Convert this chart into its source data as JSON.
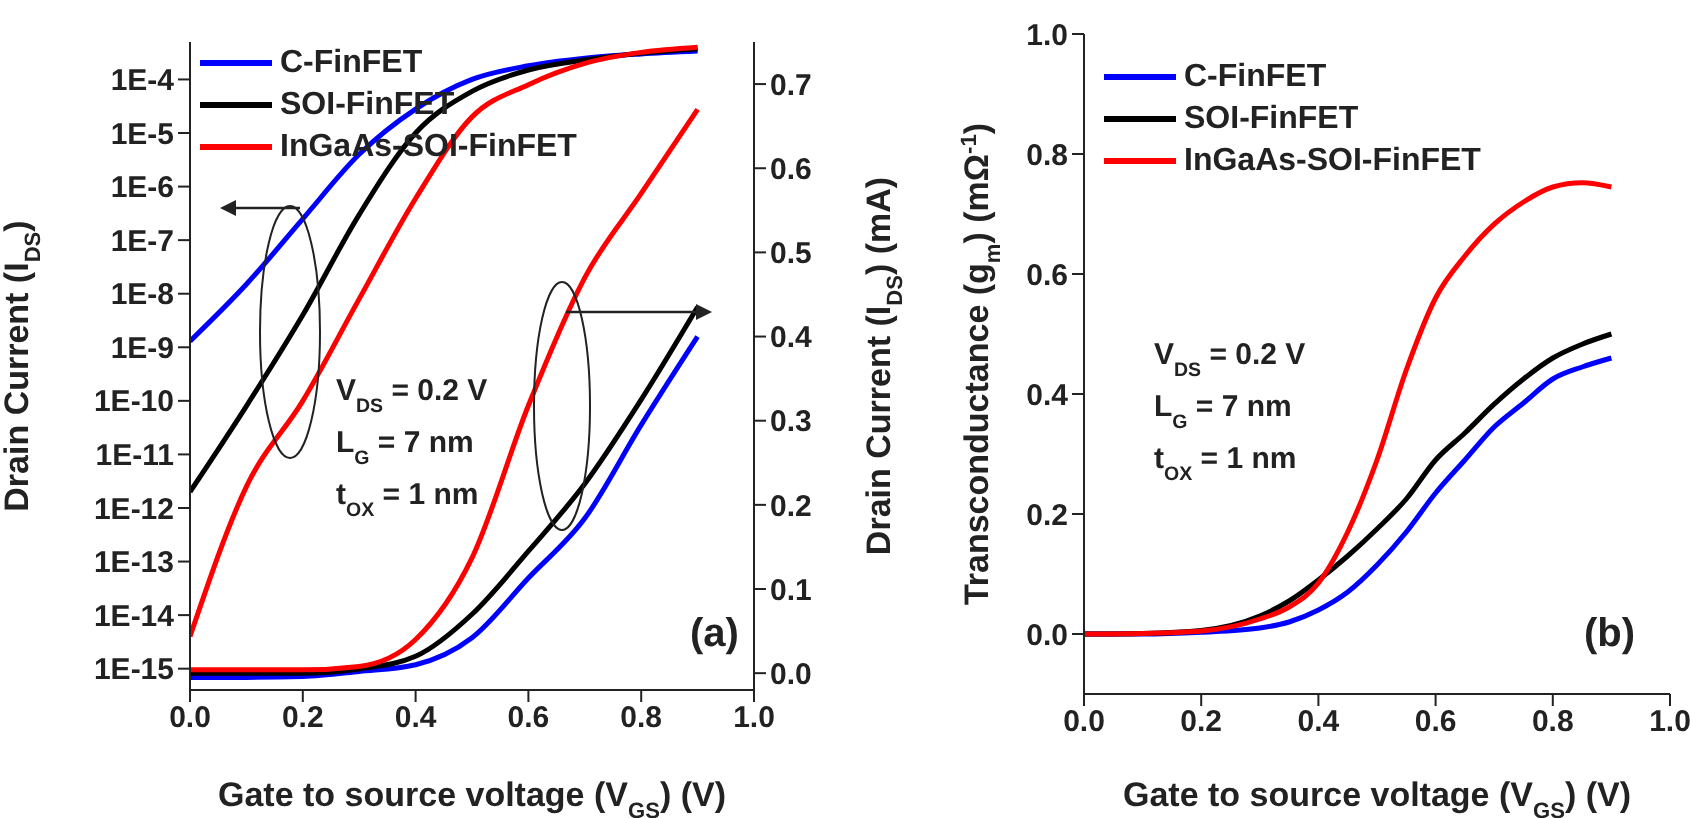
{
  "chart_data": [
    {
      "type": "line",
      "log": "y",
      "legend": "top left",
      "x": [
        0,
        0.1,
        0.2,
        0.3,
        0.4,
        0.5,
        0.6,
        0.7,
        0.8,
        0.9
      ],
      "series": [
        {
          "name": "C-FinFET",
          "color": "#0000ff",
          "values": [
            1.3e-09,
            1.5e-08,
            2.5e-07,
            4e-06,
            2.8e-05,
            0.0001,
            0.00018,
            0.00025,
            0.0003,
            0.00034
          ]
        },
        {
          "name": "SOI-FinFET",
          "color": "#000000",
          "values": [
            2e-12,
            8e-11,
            4e-09,
            3e-07,
            1e-05,
            6e-05,
            0.00015,
            0.00023,
            0.00031,
            0.00037
          ]
        },
        {
          "name": "InGaAs-SOI-FinFET",
          "color": "#ff0000",
          "values": [
            4e-15,
            2.5e-12,
            1e-10,
            8e-09,
            6e-07,
            2e-05,
            8e-05,
            0.0002,
            0.00032,
            0.0004
          ]
        },
        {
          "color": "#0000ff",
          "axis": "y2",
          "values": [
            -0.005,
            -0.005,
            -0.004,
            0.002,
            0.01,
            0.042,
            0.113,
            0.184,
            0.295,
            0.4
          ]
        },
        {
          "color": "#000000",
          "axis": "y2",
          "values": [
            0,
            0,
            0,
            0.005,
            0.02,
            0.07,
            0.145,
            0.225,
            0.325,
            0.435
          ]
        },
        {
          "color": "#ff0000",
          "axis": "y2",
          "values": [
            0.004,
            0.004,
            0.004,
            0.008,
            0.04,
            0.137,
            0.318,
            0.47,
            0.57,
            0.67
          ]
        }
      ],
      "xlim": [
        0,
        1
      ],
      "xticks": [
        {
          "value": 0,
          "label": "0.0"
        },
        {
          "value": 0.2,
          "label": "0.2"
        },
        {
          "value": 0.4,
          "label": "0.4"
        },
        {
          "value": 0.6,
          "label": "0.6"
        },
        {
          "value": 0.8,
          "label": "0.8"
        },
        {
          "value": 1,
          "label": "1.0"
        }
      ],
      "ylim": [
        4e-16,
        0.0005
      ],
      "yticks": [
        {
          "value": 1e-15,
          "label": "1E-15"
        },
        {
          "value": 1e-14,
          "label": "1E-14"
        },
        {
          "value": 1e-13,
          "label": "1E-13"
        },
        {
          "value": 1e-12,
          "label": "1E-12"
        },
        {
          "value": 1e-11,
          "label": "1E-11"
        },
        {
          "value": 1e-10,
          "label": "1E-10"
        },
        {
          "value": 1e-09,
          "label": "1E-9"
        },
        {
          "value": 1e-08,
          "label": "1E-8"
        },
        {
          "value": 1e-07,
          "label": "1E-7"
        },
        {
          "value": 1e-06,
          "label": "1E-6"
        },
        {
          "value": 1e-05,
          "label": "1E-5"
        },
        {
          "value": 0.0001,
          "label": "1E-4"
        }
      ],
      "y2lim": [
        -0.02,
        0.75
      ],
      "y2ticks": [
        {
          "value": 0,
          "label": "0.0"
        },
        {
          "value": 0.1,
          "label": "0.1"
        },
        {
          "value": 0.2,
          "label": "0.2"
        },
        {
          "value": 0.3,
          "label": "0.3"
        },
        {
          "value": 0.4,
          "label": "0.4"
        },
        {
          "value": 0.5,
          "label": "0.5"
        },
        {
          "value": 0.6,
          "label": "0.6"
        },
        {
          "value": 0.7,
          "label": "0.7"
        }
      ],
      "xlabel": "Gate to source voltage (V$_{GS}$) (V)",
      "ylabel": "Drain Current (I$_{DS}$)",
      "y2label": "Drain Current (I$_{DS}$) (mA)",
      "annotations": [
        "V$_{DS}$ = 0.2 V",
        "L$_{G}$ = 7 nm",
        "t$_{OX}$ = 1 nm",
        "(a)"
      ]
    },
    {
      "type": "line",
      "legend": "top left",
      "x": [
        0,
        0.1,
        0.2,
        0.3,
        0.35,
        0.4,
        0.45,
        0.5,
        0.55,
        0.6,
        0.65,
        0.7,
        0.75,
        0.8,
        0.85,
        0.9
      ],
      "series": [
        {
          "name": "C-FinFET",
          "color": "#0000ff",
          "values": [
            0,
            0,
            0.003,
            0.01,
            0.02,
            0.04,
            0.07,
            0.115,
            0.17,
            0.235,
            0.29,
            0.345,
            0.385,
            0.425,
            0.445,
            0.46
          ]
        },
        {
          "name": "SOI-FinFET",
          "color": "#000000",
          "values": [
            0,
            0.001,
            0.006,
            0.03,
            0.055,
            0.09,
            0.13,
            0.175,
            0.225,
            0.29,
            0.335,
            0.383,
            0.425,
            0.46,
            0.483,
            0.5
          ]
        },
        {
          "name": "InGaAs-SOI-FinFET",
          "color": "#ff0000",
          "values": [
            0,
            0.001,
            0.005,
            0.025,
            0.045,
            0.085,
            0.17,
            0.29,
            0.44,
            0.56,
            0.63,
            0.683,
            0.72,
            0.745,
            0.752,
            0.745
          ]
        }
      ],
      "xlim": [
        0,
        1
      ],
      "xticks": [
        {
          "value": 0,
          "label": "0.0"
        },
        {
          "value": 0.2,
          "label": "0.2"
        },
        {
          "value": 0.4,
          "label": "0.4"
        },
        {
          "value": 0.6,
          "label": "0.6"
        },
        {
          "value": 0.8,
          "label": "0.8"
        },
        {
          "value": 1,
          "label": "1.0"
        }
      ],
      "ylim": [
        -0.1,
        1
      ],
      "yticks": [
        {
          "value": 0,
          "label": "0.0"
        },
        {
          "value": 0.2,
          "label": "0.2"
        },
        {
          "value": 0.4,
          "label": "0.4"
        },
        {
          "value": 0.6,
          "label": "0.6"
        },
        {
          "value": 0.8,
          "label": "0.8"
        },
        {
          "value": 1,
          "label": "1.0"
        }
      ],
      "xlabel": "Gate to source voltage (V$_{GS}$) (V)",
      "ylabel": "Transconductance (g$_{m}$) (mΩ$^{-1}$)",
      "annotations": [
        "V$_{DS}$ = 0.2 V",
        "L$_{G}$ = 7 nm",
        "t$_{OX}$ = 1 nm",
        "(b)"
      ]
    }
  ]
}
